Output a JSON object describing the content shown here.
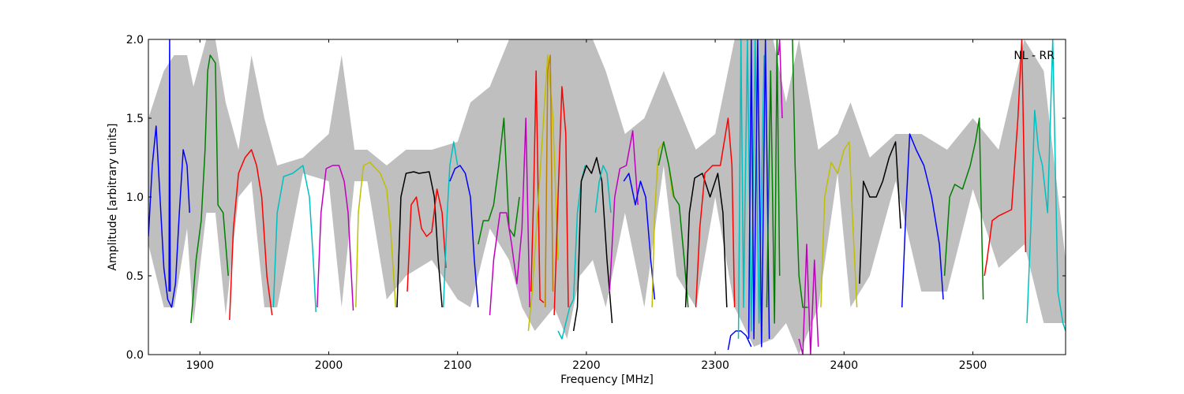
{
  "chart_data": {
    "type": "line",
    "title": "",
    "xlabel": "Frequency [MHz]",
    "ylabel": "Amplitude [arbitrary units]",
    "xlim": [
      1860,
      2572
    ],
    "ylim": [
      0.0,
      2.0
    ],
    "xticks": [
      1900,
      2000,
      2100,
      2200,
      2300,
      2400,
      2500
    ],
    "yticks": [
      0.0,
      0.5,
      1.0,
      1.5,
      2.0
    ],
    "xtick_labels": [
      "1900",
      "2000",
      "2100",
      "2200",
      "2300",
      "2400",
      "2500"
    ],
    "ytick_labels": [
      "0.0",
      "0.5",
      "1.0",
      "1.5",
      "2.0"
    ],
    "grid": false,
    "annotation": "NL - RR",
    "envelope": {
      "color": "#bfbfbf",
      "x": [
        1860,
        1872,
        1880,
        1890,
        1895,
        1905,
        1912,
        1920,
        1930,
        1940,
        1950,
        1960,
        1980,
        2000,
        2010,
        2020,
        2030,
        2045,
        2060,
        2080,
        2100,
        2110,
        2125,
        2140,
        2150,
        2160,
        2175,
        2185,
        2195,
        2205,
        2215,
        2230,
        2245,
        2260,
        2270,
        2285,
        2300,
        2315,
        2330,
        2345,
        2355,
        2365,
        2380,
        2395,
        2405,
        2420,
        2440,
        2460,
        2480,
        2500,
        2520,
        2540,
        2555,
        2572
      ],
      "y_upper": [
        1.5,
        1.8,
        1.9,
        1.9,
        1.7,
        2.0,
        2.0,
        1.6,
        1.3,
        1.9,
        1.5,
        1.2,
        1.25,
        1.4,
        1.9,
        1.3,
        1.3,
        1.2,
        1.3,
        1.3,
        1.35,
        1.6,
        1.7,
        2.0,
        2.0,
        2.0,
        2.0,
        2.0,
        2.0,
        2.0,
        1.8,
        1.4,
        1.5,
        1.8,
        1.6,
        1.3,
        1.4,
        2.0,
        2.0,
        2.0,
        1.6,
        2.0,
        1.3,
        1.4,
        1.6,
        1.25,
        1.4,
        1.4,
        1.3,
        1.5,
        1.3,
        2.0,
        1.8,
        0.6
      ],
      "y_lower": [
        0.7,
        0.3,
        0.3,
        0.8,
        0.2,
        0.9,
        0.9,
        0.25,
        1.0,
        1.1,
        0.3,
        0.3,
        1.15,
        1.1,
        0.3,
        1.1,
        1.1,
        0.35,
        0.5,
        0.6,
        0.35,
        0.3,
        0.8,
        0.6,
        0.3,
        0.15,
        0.3,
        0.1,
        0.5,
        0.6,
        0.3,
        0.9,
        0.3,
        1.2,
        0.5,
        0.3,
        1.0,
        0.3,
        0.05,
        0.1,
        0.2,
        0.0,
        0.3,
        1.15,
        0.3,
        0.5,
        1.1,
        0.4,
        0.4,
        1.05,
        0.55,
        0.7,
        0.2,
        0.2
      ]
    },
    "series": [
      {
        "color": "#0000ff",
        "x": [
          1860,
          1863,
          1866,
          1869,
          1872,
          1875,
          1878,
          1881,
          1884,
          1887,
          1890,
          1892
        ],
        "y": [
          0.75,
          1.2,
          1.45,
          1.0,
          0.55,
          0.35,
          0.3,
          0.45,
          0.9,
          1.3,
          1.2,
          0.9
        ]
      },
      {
        "color": "#0000ff",
        "x": [
          1876,
          1876.5,
          1877
        ],
        "y": [
          0.4,
          2.0,
          0.4
        ]
      },
      {
        "color": "#008000",
        "x": [
          1893,
          1897,
          1901,
          1904,
          1906,
          1908,
          1912,
          1914,
          1918,
          1922
        ],
        "y": [
          0.2,
          0.6,
          0.85,
          1.3,
          1.8,
          1.9,
          1.85,
          0.95,
          0.9,
          0.5
        ]
      },
      {
        "color": "#ff0000",
        "x": [
          1923,
          1926,
          1930,
          1935,
          1940,
          1944,
          1948,
          1952,
          1956
        ],
        "y": [
          0.22,
          0.8,
          1.15,
          1.25,
          1.3,
          1.2,
          1.0,
          0.5,
          0.25
        ]
      },
      {
        "color": "#00bfbf",
        "x": [
          1957,
          1960,
          1965,
          1972,
          1980,
          1985,
          1988,
          1990
        ],
        "y": [
          0.3,
          0.9,
          1.13,
          1.15,
          1.2,
          1.0,
          0.6,
          0.27
        ]
      },
      {
        "color": "#bf00bf",
        "x": [
          1991,
          1994,
          1998,
          2003,
          2008,
          2012,
          2015,
          2019
        ],
        "y": [
          0.3,
          0.9,
          1.18,
          1.2,
          1.2,
          1.1,
          0.9,
          0.28
        ]
      },
      {
        "color": "#bfbf00",
        "x": [
          2021,
          2023,
          2027,
          2032,
          2040,
          2045,
          2048,
          2052
        ],
        "y": [
          0.3,
          0.9,
          1.2,
          1.22,
          1.15,
          1.05,
          0.8,
          0.3
        ]
      },
      {
        "color": "#000000",
        "x": [
          2053,
          2056,
          2060,
          2066,
          2070,
          2078,
          2082,
          2085,
          2088
        ],
        "y": [
          0.3,
          1.0,
          1.15,
          1.16,
          1.15,
          1.16,
          1.0,
          0.6,
          0.3
        ]
      },
      {
        "color": "#ff0000",
        "x": [
          2061,
          2064,
          2068,
          2072,
          2076,
          2080,
          2084,
          2088,
          2091
        ],
        "y": [
          0.4,
          0.95,
          1.0,
          0.8,
          0.75,
          0.78,
          1.05,
          0.9,
          0.55
        ]
      },
      {
        "color": "#00bfbf",
        "x": [
          2089,
          2092,
          2094,
          2097,
          2100
        ],
        "y": [
          0.3,
          0.9,
          1.2,
          1.35,
          1.2
        ]
      },
      {
        "color": "#0000ff",
        "x": [
          2094,
          2098,
          2102,
          2106,
          2110,
          2113,
          2116
        ],
        "y": [
          1.1,
          1.18,
          1.2,
          1.15,
          1.0,
          0.6,
          0.3
        ]
      },
      {
        "color": "#008000",
        "x": [
          2116,
          2120,
          2124,
          2128,
          2132,
          2136,
          2140,
          2144,
          2148
        ],
        "y": [
          0.7,
          0.85,
          0.85,
          0.95,
          1.2,
          1.5,
          0.8,
          0.75,
          1.0
        ]
      },
      {
        "color": "#bf00bf",
        "x": [
          2125,
          2128,
          2133,
          2138,
          2142,
          2146,
          2150,
          2153,
          2156
        ],
        "y": [
          0.25,
          0.6,
          0.9,
          0.9,
          0.7,
          0.45,
          0.8,
          1.5,
          0.3
        ]
      },
      {
        "color": "#ff0000",
        "x": [
          2157,
          2159,
          2161,
          2164,
          2167
        ],
        "y": [
          0.4,
          1.0,
          1.8,
          0.35,
          0.33
        ]
      },
      {
        "color": "#bfbf00",
        "x": [
          2155,
          2158,
          2162,
          2166,
          2170,
          2174,
          2178
        ],
        "y": [
          0.15,
          0.4,
          0.9,
          1.4,
          1.9,
          1.5,
          0.6
        ]
      },
      {
        "color": "#bf7f00",
        "x": [
          2168,
          2170,
          2172,
          2174
        ],
        "y": [
          0.3,
          1.8,
          1.9,
          0.4
        ]
      },
      {
        "color": "#ff0000",
        "x": [
          2175,
          2178,
          2181,
          2184,
          2186
        ],
        "y": [
          0.25,
          1.0,
          1.7,
          1.4,
          0.3
        ]
      },
      {
        "color": "#00bfbf",
        "x": [
          2178,
          2181,
          2184,
          2187,
          2190,
          2193,
          2196,
          2199
        ],
        "y": [
          0.15,
          0.1,
          0.2,
          0.3,
          0.35,
          0.9,
          1.1,
          1.2
        ]
      },
      {
        "color": "#000000",
        "x": [
          2190,
          2193,
          2196,
          2200,
          2204,
          2208,
          2212,
          2216,
          2220
        ],
        "y": [
          0.15,
          0.3,
          1.1,
          1.2,
          1.15,
          1.25,
          1.1,
          0.6,
          0.2
        ]
      },
      {
        "color": "#00bfbf",
        "x": [
          2207,
          2210,
          2213,
          2216,
          2219
        ],
        "y": [
          0.9,
          1.1,
          1.2,
          1.15,
          0.9
        ]
      },
      {
        "color": "#bf00bf",
        "x": [
          2218,
          2222,
          2226,
          2231,
          2236,
          2240
        ],
        "y": [
          0.4,
          1.0,
          1.18,
          1.2,
          1.42,
          0.95
        ]
      },
      {
        "color": "#0000ff",
        "x": [
          2229,
          2233,
          2238,
          2242,
          2246,
          2250,
          2253
        ],
        "y": [
          1.1,
          1.15,
          0.95,
          1.1,
          1.0,
          0.6,
          0.35
        ]
      },
      {
        "color": "#bfbf00",
        "x": [
          2251,
          2253,
          2256,
          2260,
          2264,
          2267
        ],
        "y": [
          0.3,
          0.9,
          1.3,
          1.35,
          1.2,
          1.0
        ]
      },
      {
        "color": "#008000",
        "x": [
          2256,
          2260,
          2264,
          2268,
          2272,
          2276,
          2279
        ],
        "y": [
          1.2,
          1.35,
          1.2,
          1.0,
          0.95,
          0.6,
          0.3
        ]
      },
      {
        "color": "#000000",
        "x": [
          2277,
          2280,
          2284,
          2290,
          2296,
          2302,
          2306,
          2309
        ],
        "y": [
          0.3,
          0.9,
          1.12,
          1.15,
          1.0,
          1.15,
          0.9,
          0.3
        ]
      },
      {
        "color": "#ff0000",
        "x": [
          2285,
          2288,
          2292,
          2298,
          2304,
          2310,
          2313,
          2315
        ],
        "y": [
          0.3,
          0.8,
          1.15,
          1.2,
          1.2,
          1.5,
          1.2,
          0.3
        ]
      },
      {
        "color": "#0000ff",
        "x": [
          2310,
          2312,
          2316,
          2320,
          2324,
          2328
        ],
        "y": [
          0.03,
          0.12,
          0.15,
          0.15,
          0.12,
          0.05
        ]
      },
      {
        "color": "#00bfbf",
        "x": [
          2318,
          2320,
          2322,
          2325,
          2328,
          2331,
          2334,
          2338
        ],
        "y": [
          0.1,
          2.0,
          0.3,
          2.0,
          0.15,
          2.0,
          0.2,
          1.9
        ]
      },
      {
        "color": "#0000ff",
        "x": [
          2326,
          2328,
          2330,
          2333,
          2336,
          2339,
          2342
        ],
        "y": [
          0.1,
          2.0,
          0.1,
          2.0,
          0.05,
          2.0,
          0.1
        ]
      },
      {
        "color": "#008000",
        "x": [
          2340,
          2343,
          2346,
          2348,
          2350
        ],
        "y": [
          0.3,
          1.8,
          0.2,
          2.0,
          0.5
        ]
      },
      {
        "color": "#bf00bf",
        "x": [
          2349,
          2350,
          2352
        ],
        "y": [
          1.9,
          2.0,
          1.5
        ]
      },
      {
        "color": "#008000",
        "x": [
          2360,
          2362,
          2365,
          2368,
          2372
        ],
        "y": [
          2.0,
          1.2,
          0.5,
          0.3,
          0.3
        ]
      },
      {
        "color": "#bf00bf",
        "x": [
          2365,
          2368,
          2371,
          2374,
          2377,
          2380
        ],
        "y": [
          0.1,
          0.0,
          0.7,
          0.0,
          0.6,
          0.05
        ]
      },
      {
        "color": "#bfbf00",
        "x": [
          2382,
          2385,
          2390,
          2395,
          2400,
          2404,
          2407,
          2410
        ],
        "y": [
          0.3,
          1.0,
          1.22,
          1.15,
          1.3,
          1.35,
          0.8,
          0.3
        ]
      },
      {
        "color": "#000000",
        "x": [
          2412,
          2415,
          2420,
          2425,
          2430,
          2435,
          2440,
          2444
        ],
        "y": [
          0.45,
          1.1,
          1.0,
          1.0,
          1.1,
          1.25,
          1.35,
          0.8
        ]
      },
      {
        "color": "#0000ff",
        "x": [
          2445,
          2448,
          2451,
          2456,
          2462,
          2468,
          2474,
          2477
        ],
        "y": [
          0.3,
          0.9,
          1.4,
          1.3,
          1.2,
          1.0,
          0.7,
          0.35
        ]
      },
      {
        "color": "#008000",
        "x": [
          2478,
          2482,
          2486,
          2492,
          2498,
          2502,
          2505,
          2508
        ],
        "y": [
          0.5,
          1.0,
          1.08,
          1.05,
          1.2,
          1.35,
          1.5,
          0.35
        ]
      },
      {
        "color": "#ff0000",
        "x": [
          2509,
          2511,
          2515,
          2520,
          2525,
          2530,
          2535,
          2538,
          2541
        ],
        "y": [
          0.5,
          0.6,
          0.85,
          0.88,
          0.9,
          0.92,
          1.5,
          2.0,
          0.65
        ]
      },
      {
        "color": "#00bfbf",
        "x": [
          2542,
          2545,
          2548,
          2551,
          2554,
          2558,
          2562,
          2566,
          2570,
          2572
        ],
        "y": [
          0.2,
          0.8,
          1.55,
          1.3,
          1.2,
          0.9,
          2.0,
          0.4,
          0.2,
          0.15
        ]
      }
    ]
  }
}
